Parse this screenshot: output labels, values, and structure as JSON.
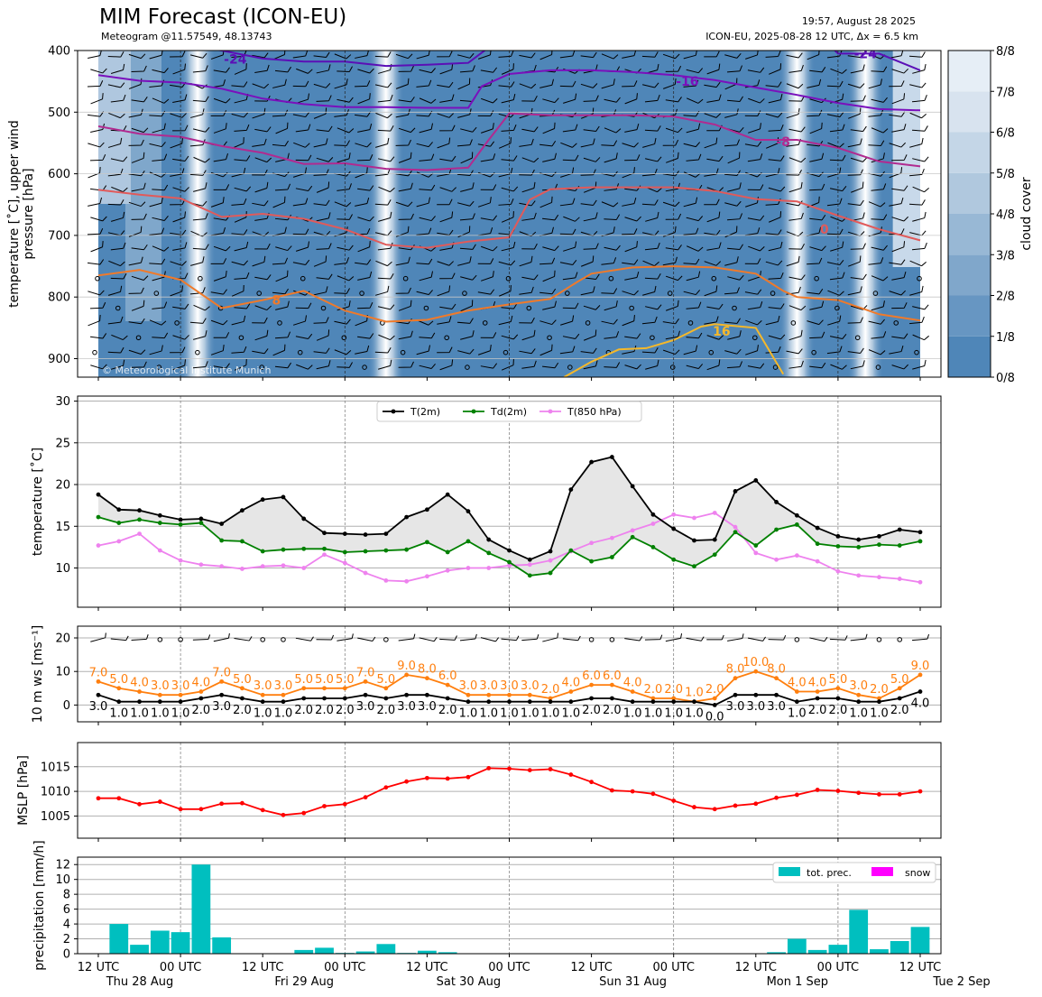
{
  "header": {
    "title": "MIM Forecast (ICON-EU)",
    "subtitle": "Meteogram @11.57549, 48.13743",
    "timestamp": "19:57, August 28 2025",
    "model_info": "ICON-EU, 2025-08-28 12 UTC, Δx = 6.5 km",
    "copyright": "© Meteorological Institute Munich"
  },
  "colors": {
    "T2m": "#000000",
    "Td2m": "#008000",
    "T850": "#ee82ee",
    "gust": "#ff7f0e",
    "wind": "#000000",
    "mslp": "#ff0000",
    "precip": "#00bfbf",
    "snow": "#ff00ff",
    "cloud_dark": "#4f86b8",
    "cloud_light": "#f2f6fa"
  },
  "x_axis": {
    "major_ticks": [
      {
        "t": 0,
        "label": "12 UTC",
        "day": "Thu 28 Aug"
      },
      {
        "t": 12,
        "label": "00 UTC",
        "day": ""
      },
      {
        "t": 24,
        "label": "12 UTC",
        "day": "Fri 29 Aug"
      },
      {
        "t": 36,
        "label": "00 UTC",
        "day": ""
      },
      {
        "t": 48,
        "label": "12 UTC",
        "day": "Sat 30 Aug"
      },
      {
        "t": 60,
        "label": "00 UTC",
        "day": ""
      },
      {
        "t": 72,
        "label": "12 UTC",
        "day": "Sun 31 Aug"
      },
      {
        "t": 84,
        "label": "00 UTC",
        "day": ""
      },
      {
        "t": 96,
        "label": "12 UTC",
        "day": "Mon 1 Sep"
      },
      {
        "t": 108,
        "label": "00 UTC",
        "day": ""
      },
      {
        "t": 120,
        "label": "12 UTC",
        "day": "Tue 2 Sep"
      }
    ],
    "day_separators": [
      12,
      36,
      60,
      84,
      108
    ]
  },
  "chart_data": [
    {
      "type": "heatmap",
      "panel": "upper",
      "ylabel": "temperature [˚C], upper wind\npressure [hPa]",
      "ylim": [
        930,
        400
      ],
      "yticks": [
        400,
        500,
        600,
        700,
        800,
        900
      ],
      "cloud_cover": {
        "colorbar_label": "cloud cover",
        "levels": [
          "0/8",
          "1/8",
          "2/8",
          "3/8",
          "4/8",
          "5/8",
          "6/8",
          "7/8",
          "8/8"
        ],
        "colors": [
          "#4f86b8",
          "#6796c2",
          "#80a7cb",
          "#98b8d5",
          "#b0c8de",
          "#c4d6e7",
          "#d8e3ef",
          "#e6eef6",
          "#f2f6fa"
        ],
        "bright_columns": [
          14.5,
          42,
          102,
          112
        ]
      },
      "isotherms": [
        {
          "label": "-24",
          "color": "#5b0fb6",
          "t": [
            0,
            6,
            12,
            18,
            24,
            30,
            36,
            42,
            48,
            54,
            60,
            66,
            72,
            78,
            84,
            90,
            96,
            102,
            108,
            114,
            120
          ],
          "p": [
            380,
            385,
            390,
            400,
            413,
            418,
            418,
            425,
            423,
            420,
            370,
            360,
            350,
            350,
            350,
            350,
            345,
            340,
            405,
            405,
            432
          ]
        },
        {
          "label": "-16",
          "color": "#7a10bc",
          "t": [
            0,
            6,
            12,
            18,
            24,
            30,
            36,
            42,
            48,
            54,
            56,
            60,
            66,
            72,
            78,
            84,
            90,
            96,
            102,
            108,
            114,
            120
          ],
          "p": [
            440,
            449,
            452,
            462,
            478,
            487,
            492,
            492,
            493,
            493,
            458,
            438,
            432,
            432,
            435,
            440,
            448,
            460,
            472,
            485,
            495,
            497
          ]
        },
        {
          "label": "-8",
          "color": "#b12a90",
          "t": [
            0,
            6,
            12,
            18,
            24,
            30,
            36,
            42,
            48,
            54,
            57,
            60,
            66,
            72,
            78,
            84,
            90,
            96,
            102,
            108,
            114,
            120
          ],
          "p": [
            523,
            535,
            540,
            555,
            566,
            584,
            583,
            592,
            594,
            590,
            545,
            502,
            505,
            505,
            505,
            507,
            520,
            545,
            545,
            558,
            580,
            588
          ]
        },
        {
          "label": "0",
          "color": "#e15a5a",
          "t": [
            0,
            6,
            12,
            18,
            24,
            30,
            36,
            42,
            48,
            54,
            60,
            63,
            66,
            72,
            78,
            84,
            90,
            96,
            102,
            108,
            114,
            120
          ],
          "p": [
            626,
            634,
            640,
            670,
            665,
            673,
            690,
            715,
            720,
            710,
            703,
            642,
            625,
            622,
            622,
            622,
            628,
            641,
            645,
            668,
            690,
            708
          ]
        },
        {
          "label": "8",
          "color": "#f07a2a",
          "t": [
            0,
            6,
            12,
            18,
            24,
            30,
            36,
            42,
            48,
            54,
            60,
            66,
            70,
            72,
            78,
            84,
            90,
            96,
            100,
            102,
            108,
            114,
            120
          ],
          "p": [
            765,
            756,
            772,
            818,
            805,
            790,
            822,
            840,
            837,
            822,
            812,
            803,
            775,
            762,
            752,
            750,
            752,
            762,
            790,
            800,
            805,
            828,
            838
          ]
        },
        {
          "label": "16",
          "color": "#f5b82a",
          "t": [
            68,
            72,
            76,
            80,
            84,
            88,
            90,
            92,
            96,
            100
          ],
          "p": [
            930,
            905,
            885,
            883,
            870,
            848,
            844,
            846,
            850,
            925
          ]
        }
      ]
    },
    {
      "type": "line",
      "panel": "temperature",
      "ylabel": "temperature [˚C]",
      "ylim": [
        5.3,
        30.6
      ],
      "yticks": [
        10,
        15,
        20,
        25,
        30
      ],
      "x": [
        0,
        3,
        6,
        9,
        12,
        15,
        18,
        21,
        24,
        27,
        30,
        33,
        36,
        39,
        42,
        45,
        48,
        51,
        54,
        57,
        60,
        63,
        66,
        69,
        72,
        75,
        78,
        81,
        84,
        87,
        90,
        93,
        96,
        99,
        102,
        105,
        108,
        111,
        114,
        117,
        120
      ],
      "legend": [
        "T(2m)",
        "Td(2m)",
        "T(850 hPa)"
      ],
      "series": [
        {
          "name": "T(2m)",
          "values": [
            18.8,
            17.0,
            16.9,
            16.3,
            15.8,
            15.9,
            15.3,
            16.9,
            18.2,
            18.5,
            15.9,
            14.2,
            14.1,
            14.0,
            14.1,
            16.1,
            17.0,
            18.8,
            16.8,
            13.4,
            12.1,
            11.0,
            12.0,
            19.4,
            22.7,
            23.3,
            19.8,
            16.4,
            14.7,
            13.3,
            13.4,
            19.2,
            20.5,
            17.9,
            16.3,
            14.8,
            13.8,
            13.4,
            13.8,
            14.6,
            14.3
          ]
        },
        {
          "name": "Td(2m)",
          "values": [
            16.1,
            15.4,
            15.8,
            15.4,
            15.2,
            15.4,
            13.3,
            13.2,
            12.0,
            12.2,
            12.3,
            12.3,
            11.9,
            12.0,
            12.1,
            12.2,
            13.1,
            11.9,
            13.2,
            11.8,
            10.7,
            9.1,
            9.4,
            12.1,
            10.8,
            11.3,
            13.7,
            12.5,
            11.0,
            10.2,
            11.6,
            14.3,
            12.7,
            14.6,
            15.2,
            12.9,
            12.6,
            12.5,
            12.8,
            12.7,
            13.2
          ]
        },
        {
          "name": "T(850 hPa)",
          "values": [
            12.7,
            13.2,
            14.1,
            12.1,
            10.9,
            10.4,
            10.2,
            9.9,
            10.2,
            10.3,
            10.0,
            11.6,
            10.6,
            9.4,
            8.5,
            8.4,
            9.0,
            9.7,
            10.0,
            10.0,
            10.3,
            10.4,
            10.9,
            12.0,
            13.0,
            13.6,
            14.5,
            15.3,
            16.4,
            16.0,
            16.6,
            14.9,
            11.8,
            11.0,
            11.5,
            10.8,
            9.6,
            9.1,
            8.9,
            8.7,
            8.3
          ]
        }
      ]
    },
    {
      "type": "line",
      "panel": "wind",
      "ylabel": "10 m ws [ms⁻¹]",
      "ylim": [
        -5,
        23.5
      ],
      "yticks": [
        0,
        10,
        20
      ],
      "x": [
        0,
        3,
        6,
        9,
        12,
        15,
        18,
        21,
        24,
        27,
        30,
        33,
        36,
        39,
        42,
        45,
        48,
        51,
        54,
        57,
        60,
        63,
        66,
        69,
        72,
        75,
        78,
        81,
        84,
        87,
        90,
        93,
        96,
        99,
        102,
        105,
        108,
        111,
        114,
        117,
        120
      ],
      "series": [
        {
          "name": "gust",
          "values": [
            7.0,
            5.0,
            4.0,
            3.0,
            3.0,
            4.0,
            7.0,
            5.0,
            3.0,
            3.0,
            5.0,
            5.0,
            5.0,
            7.0,
            5.0,
            9.0,
            8.0,
            6.0,
            3.0,
            3.0,
            3.0,
            3.0,
            2.0,
            4.0,
            6.0,
            6.0,
            4.0,
            2.0,
            2.0,
            1.0,
            2.0,
            8.0,
            10.0,
            8.0,
            4.0,
            4.0,
            5.0,
            3.0,
            2.0,
            5.0,
            9.0
          ]
        },
        {
          "name": "mean",
          "values": [
            3.0,
            1.0,
            1.0,
            1.0,
            1.0,
            2.0,
            3.0,
            2.0,
            1.0,
            1.0,
            2.0,
            2.0,
            2.0,
            3.0,
            2.0,
            3.0,
            3.0,
            2.0,
            1.0,
            1.0,
            1.0,
            1.0,
            1.0,
            1.0,
            2.0,
            2.0,
            1.0,
            1.0,
            1.0,
            1.0,
            0.0,
            3.0,
            3.0,
            3.0,
            1.0,
            2.0,
            2.0,
            1.0,
            1.0,
            2.0,
            4.0
          ]
        }
      ],
      "labels": {
        "gust": [
          "7.0",
          "5.0",
          "4.0",
          "3.0",
          "3.0",
          "4.0",
          "7.0",
          "5.0",
          "3.0",
          "3.0",
          "5.0",
          "5.0",
          "5.0",
          "7.0",
          "5.0",
          "9.0",
          "8.0",
          "6.0",
          "3.0",
          "3.0",
          "3.0",
          "3.0",
          "2.0",
          "4.0",
          "6.0",
          "6.0",
          "4.0",
          "2.0",
          "2.0",
          "1.0",
          "2.0",
          "8.0",
          "10.0",
          "8.0",
          "4.0",
          "4.0",
          "5.0",
          "3.0",
          "2.0",
          "5.0",
          "9.0"
        ],
        "mean": [
          "3.0",
          "1.0",
          "1.0",
          "1.0",
          "1.0",
          "2.0",
          "3.0",
          "2.0",
          "1.0",
          "1.0",
          "2.0",
          "2.0",
          "2.0",
          "3.0",
          "2.0",
          "3.0",
          "3.0",
          "2.0",
          "1.0",
          "1.0",
          "1.0",
          "1.0",
          "1.0",
          "1.0",
          "2.0",
          "2.0",
          "1.0",
          "1.0",
          "1.0",
          "1.0",
          "0.0",
          "3.0",
          "3.0",
          "3.0",
          "1.0",
          "2.0",
          "2.0",
          "1.0",
          "1.0",
          "2.0",
          "4.0"
        ]
      }
    },
    {
      "type": "line",
      "panel": "mslp",
      "ylabel": "MSLP [hPa]",
      "ylim": [
        1000.5,
        1019.9
      ],
      "yticks": [
        1005,
        1010,
        1015
      ],
      "x": [
        0,
        3,
        6,
        9,
        12,
        15,
        18,
        21,
        24,
        27,
        30,
        33,
        36,
        39,
        42,
        45,
        48,
        51,
        54,
        57,
        60,
        63,
        66,
        69,
        72,
        75,
        78,
        81,
        84,
        87,
        90,
        93,
        96,
        99,
        102,
        105,
        108,
        111,
        114,
        117,
        120
      ],
      "series": [
        {
          "name": "MSLP",
          "values": [
            1008.6,
            1008.6,
            1007.4,
            1007.9,
            1006.4,
            1006.4,
            1007.5,
            1007.6,
            1006.2,
            1005.2,
            1005.6,
            1007.0,
            1007.4,
            1008.8,
            1010.8,
            1012.0,
            1012.7,
            1012.6,
            1012.9,
            1014.7,
            1014.6,
            1014.3,
            1014.5,
            1013.4,
            1011.9,
            1010.2,
            1010.0,
            1009.5,
            1008.1,
            1006.8,
            1006.4,
            1007.1,
            1007.5,
            1008.7,
            1009.3,
            1010.3,
            1010.1,
            1009.7,
            1009.4,
            1009.4,
            1010.0
          ]
        }
      ]
    },
    {
      "type": "bar",
      "panel": "precipitation",
      "ylabel": "precipitation [mm/h]",
      "ylim": [
        0,
        13
      ],
      "yticks": [
        0,
        2,
        4,
        6,
        8,
        10,
        12
      ],
      "legend": [
        "tot. prec.",
        "snow"
      ],
      "x": [
        3,
        6,
        9,
        12,
        15,
        18,
        30,
        33,
        36,
        39,
        42,
        45,
        48,
        51,
        99,
        102,
        105,
        108,
        111,
        114,
        117,
        120
      ],
      "values": [
        4.0,
        1.2,
        3.1,
        2.9,
        12.0,
        2.2,
        0.5,
        0.8,
        0.1,
        0.3,
        1.3,
        0.1,
        0.4,
        0.2,
        0.2,
        2.0,
        0.5,
        1.2,
        5.9,
        0.6,
        1.7,
        3.6
      ]
    }
  ]
}
